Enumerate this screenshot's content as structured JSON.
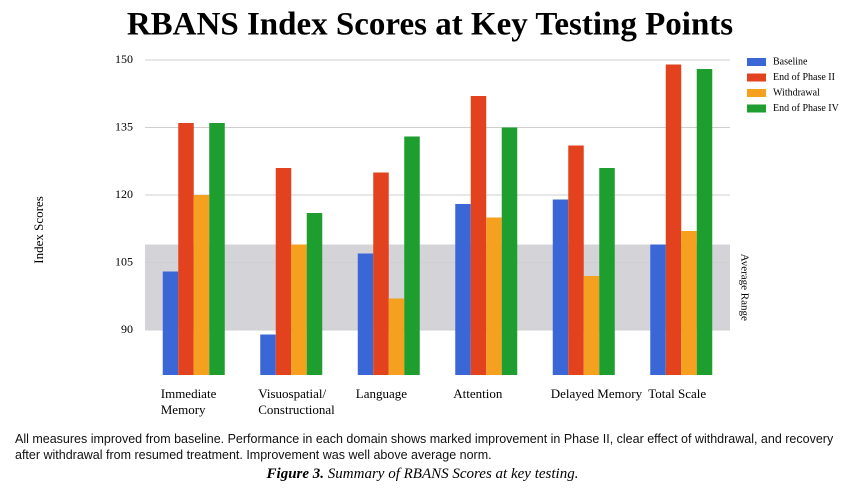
{
  "chart_data": {
    "type": "bar",
    "title": "RBANS Index Scores at Key Testing Points",
    "y_label": "Index Scores",
    "categories": [
      "Immediate Memory",
      "Visuospatial/ Constructional",
      "Language",
      "Attention",
      "Delayed Memory",
      "Total Scale"
    ],
    "series": [
      {
        "name": "Baseline",
        "color": "#3b66d6",
        "values": [
          103,
          89,
          107,
          118,
          119,
          109
        ]
      },
      {
        "name": "End of Phase II",
        "color": "#e2421d",
        "values": [
          136,
          126,
          125,
          142,
          131,
          149
        ]
      },
      {
        "name": "Withdrawal",
        "color": "#f5a11f",
        "values": [
          120,
          109,
          97,
          115,
          102,
          112
        ]
      },
      {
        "name": "End of Phase IV",
        "color": "#1d9e2e",
        "values": [
          136,
          116,
          133,
          135,
          126,
          148
        ]
      }
    ],
    "ylim": [
      80,
      152
    ],
    "yticks": [
      90,
      105,
      120,
      135,
      150
    ],
    "grid": true,
    "legend": "upper right",
    "average_range": {
      "label": "Average Range",
      "range": [
        90,
        109
      ]
    },
    "note": "All measures improved from baseline. Performance in each domain shows marked improvement in Phase II, clear effect of withdrawal, and recovery after withdrawal from resumed treatment. Improvement was well above average norm.",
    "figure_label": "Figure 3.",
    "figure_caption": "Summary of RBANS Scores at key testing."
  }
}
